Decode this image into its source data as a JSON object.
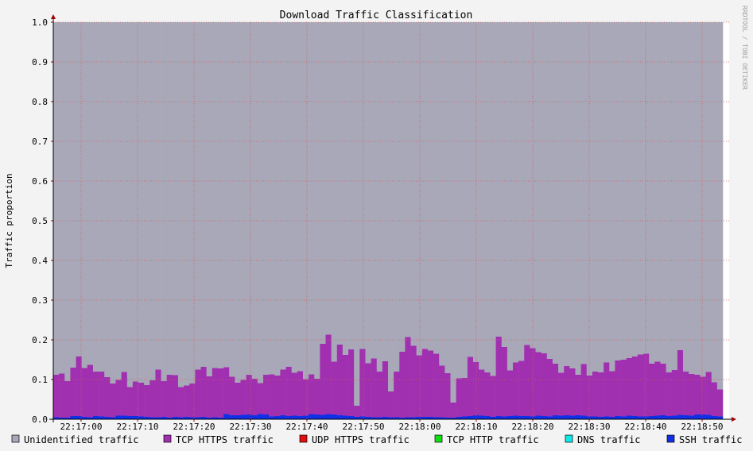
{
  "chart_data": {
    "type": "bar",
    "stacked": true,
    "title": "Download Traffic Classification",
    "ylabel": "Traffic proportion",
    "watermark": "RRDTOOL / TOBI OETIKER",
    "ylim": [
      0,
      1.0
    ],
    "yticks": [
      "0.0",
      "0.1",
      "0.2",
      "0.3",
      "0.4",
      "0.5",
      "0.6",
      "0.7",
      "0.8",
      "0.9",
      "1.0"
    ],
    "xticks": [
      "22:17:00",
      "22:17:10",
      "22:17:20",
      "22:17:30",
      "22:17:40",
      "22:17:50",
      "22:18:00",
      "22:18:10",
      "22:18:20",
      "22:18:30",
      "22:18:40",
      "22:18:50"
    ],
    "grid": true,
    "legend_position": "bottom",
    "series": [
      {
        "name": "Unidentified traffic",
        "color": "#a8a8b8",
        "note": "remainder to 1.0"
      },
      {
        "name": "TCP HTTPS traffic",
        "color": "#a030b0",
        "values": [
          0.107,
          0.111,
          0.092,
          0.122,
          0.15,
          0.123,
          0.132,
          0.112,
          0.113,
          0.1,
          0.085,
          0.09,
          0.11,
          0.073,
          0.087,
          0.085,
          0.08,
          0.093,
          0.12,
          0.09,
          0.108,
          0.105,
          0.076,
          0.079,
          0.085,
          0.12,
          0.126,
          0.104,
          0.124,
          0.124,
          0.118,
          0.097,
          0.082,
          0.088,
          0.1,
          0.092,
          0.078,
          0.1,
          0.106,
          0.102,
          0.115,
          0.124,
          0.108,
          0.113,
          0.092,
          0.1,
          0.09,
          0.179,
          0.2,
          0.133,
          0.178,
          0.153,
          0.168,
          0.028,
          0.17,
          0.135,
          0.148,
          0.115,
          0.14,
          0.065,
          0.115,
          0.166,
          0.202,
          0.18,
          0.155,
          0.171,
          0.167,
          0.16,
          0.13,
          0.112,
          0.038,
          0.097,
          0.097,
          0.149,
          0.134,
          0.116,
          0.11,
          0.103,
          0.2,
          0.175,
          0.115,
          0.134,
          0.139,
          0.179,
          0.172,
          0.16,
          0.158,
          0.145,
          0.13,
          0.108,
          0.124,
          0.119,
          0.102,
          0.13,
          0.103,
          0.113,
          0.112,
          0.136,
          0.115,
          0.14,
          0.143,
          0.145,
          0.15,
          0.156,
          0.158,
          0.132,
          0.136,
          0.13,
          0.11,
          0.115,
          0.163,
          0.11,
          0.105,
          0.1,
          0.095,
          0.108,
          0.085,
          0.068
        ]
      },
      {
        "name": "UDP HTTPS traffic",
        "color": "#e01010",
        "values": []
      },
      {
        "name": "TCP HTTP traffic",
        "color": "#10e010",
        "values": []
      },
      {
        "name": "DNS traffic",
        "color": "#10e8e8",
        "values": []
      },
      {
        "name": "SSH traffic",
        "color": "#1030e8",
        "values": [
          0.005,
          0.004,
          0.004,
          0.008,
          0.008,
          0.006,
          0.005,
          0.008,
          0.007,
          0.006,
          0.005,
          0.009,
          0.009,
          0.008,
          0.008,
          0.007,
          0.006,
          0.005,
          0.005,
          0.006,
          0.004,
          0.006,
          0.005,
          0.006,
          0.005,
          0.005,
          0.006,
          0.004,
          0.005,
          0.004,
          0.013,
          0.01,
          0.01,
          0.011,
          0.012,
          0.01,
          0.013,
          0.012,
          0.007,
          0.008,
          0.01,
          0.008,
          0.009,
          0.008,
          0.009,
          0.013,
          0.012,
          0.011,
          0.013,
          0.012,
          0.01,
          0.009,
          0.008,
          0.006,
          0.007,
          0.006,
          0.005,
          0.005,
          0.006,
          0.005,
          0.005,
          0.004,
          0.005,
          0.005,
          0.006,
          0.006,
          0.006,
          0.005,
          0.005,
          0.004,
          0.004,
          0.006,
          0.007,
          0.008,
          0.01,
          0.009,
          0.008,
          0.006,
          0.008,
          0.007,
          0.008,
          0.009,
          0.008,
          0.008,
          0.007,
          0.009,
          0.008,
          0.007,
          0.01,
          0.009,
          0.01,
          0.009,
          0.01,
          0.009,
          0.007,
          0.007,
          0.006,
          0.007,
          0.006,
          0.008,
          0.007,
          0.009,
          0.008,
          0.007,
          0.007,
          0.008,
          0.009,
          0.01,
          0.008,
          0.009,
          0.011,
          0.01,
          0.009,
          0.012,
          0.012,
          0.011,
          0.008,
          0.007
        ]
      }
    ]
  }
}
